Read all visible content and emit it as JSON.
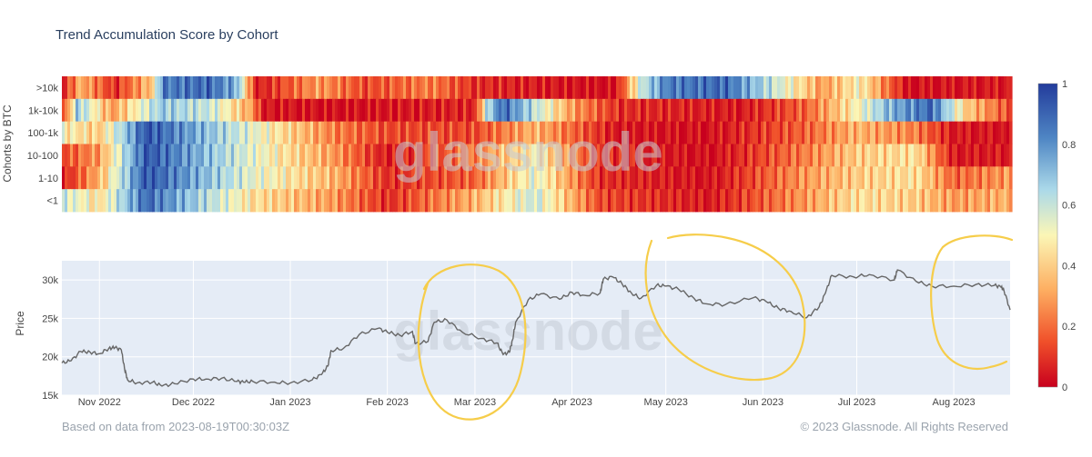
{
  "chart_data": [
    {
      "type": "heatmap",
      "title": "Trend Accumulation Score by Cohort",
      "ylabel": "Cohorts by BTC",
      "rows": [
        ">10k",
        "1k-10k",
        "100-1k",
        "10-100",
        "1-10",
        "<1"
      ],
      "x_start": "2022-10-20",
      "x_end": "2023-08-19",
      "color_scale": {
        "min": 0,
        "max": 1,
        "ticks": [
          0,
          0.2,
          0.4,
          0.6,
          0.8,
          1
        ],
        "colors": [
          "#c8001e",
          "#f0502a",
          "#fdae61",
          "#fbf6b6",
          "#abd9e9",
          "#4f86c4",
          "#233c9c"
        ]
      },
      "segments": [
        [
          [
            "2022-10-20",
            0.05
          ],
          [
            "2022-10-26",
            0.35
          ],
          [
            "2022-11-06",
            0.1
          ],
          [
            "2022-11-18",
            0.4
          ],
          [
            "2022-11-21",
            0.85
          ],
          [
            "2022-12-06",
            0.9
          ],
          [
            "2022-12-15",
            0.75
          ],
          [
            "2022-12-21",
            0.05
          ],
          [
            "2023-01-10",
            0.3
          ],
          [
            "2023-01-25",
            0.15
          ],
          [
            "2023-02-15",
            0.25
          ],
          [
            "2023-03-01",
            0.1
          ],
          [
            "2023-03-25",
            0.05
          ],
          [
            "2023-04-15",
            0.02
          ],
          [
            "2023-04-23",
            0.6
          ],
          [
            "2023-05-01",
            0.85
          ],
          [
            "2023-05-20",
            0.9
          ],
          [
            "2023-06-05",
            0.6
          ],
          [
            "2023-06-20",
            0.3
          ],
          [
            "2023-07-02",
            0.5
          ],
          [
            "2023-07-17",
            0.03
          ],
          [
            "2023-08-19",
            0.05
          ]
        ],
        [
          [
            "2022-10-20",
            0.05
          ],
          [
            "2022-10-25",
            0.7
          ],
          [
            "2022-11-05",
            0.3
          ],
          [
            "2022-11-21",
            0.7
          ],
          [
            "2022-12-07",
            0.6
          ],
          [
            "2022-12-20",
            0.3
          ],
          [
            "2022-12-23",
            0.05
          ],
          [
            "2023-01-15",
            0.03
          ],
          [
            "2023-03-01",
            0.08
          ],
          [
            "2023-03-05",
            0.65
          ],
          [
            "2023-03-10",
            0.9
          ],
          [
            "2023-04-01",
            0.3
          ],
          [
            "2023-04-16",
            0.1
          ],
          [
            "2023-05-25",
            0.05
          ],
          [
            "2023-06-15",
            0.2
          ],
          [
            "2023-07-01",
            0.5
          ],
          [
            "2023-07-12",
            0.75
          ],
          [
            "2023-07-25",
            0.9
          ],
          [
            "2023-08-05",
            0.4
          ],
          [
            "2023-08-19",
            0.15
          ]
        ],
        [
          [
            "2022-10-20",
            0.5
          ],
          [
            "2022-11-01",
            0.4
          ],
          [
            "2022-11-16",
            0.95
          ],
          [
            "2022-12-20",
            0.55
          ],
          [
            "2023-01-15",
            0.25
          ],
          [
            "2023-02-01",
            0.15
          ],
          [
            "2023-03-01",
            0.15
          ],
          [
            "2023-03-20",
            0.35
          ],
          [
            "2023-04-15",
            0.05
          ],
          [
            "2023-05-15",
            0.03
          ],
          [
            "2023-06-15",
            0.2
          ],
          [
            "2023-07-01",
            0.35
          ],
          [
            "2023-07-20",
            0.25
          ],
          [
            "2023-08-01",
            0.05
          ],
          [
            "2023-08-19",
            0.03
          ]
        ],
        [
          [
            "2022-10-20",
            0.15
          ],
          [
            "2022-11-01",
            0.3
          ],
          [
            "2022-11-16",
            0.95
          ],
          [
            "2022-12-20",
            0.55
          ],
          [
            "2023-01-15",
            0.3
          ],
          [
            "2023-02-01",
            0.05
          ],
          [
            "2023-03-01",
            0.25
          ],
          [
            "2023-03-20",
            0.5
          ],
          [
            "2023-04-10",
            0.1
          ],
          [
            "2023-05-15",
            0.02
          ],
          [
            "2023-06-15",
            0.25
          ],
          [
            "2023-07-01",
            0.4
          ],
          [
            "2023-07-20",
            0.45
          ],
          [
            "2023-08-01",
            0.05
          ],
          [
            "2023-08-19",
            0.05
          ]
        ],
        [
          [
            "2022-10-20",
            0.05
          ],
          [
            "2022-11-01",
            0.35
          ],
          [
            "2022-11-16",
            0.95
          ],
          [
            "2022-12-20",
            0.55
          ],
          [
            "2023-01-15",
            0.35
          ],
          [
            "2023-02-01",
            0.1
          ],
          [
            "2023-03-01",
            0.2
          ],
          [
            "2023-03-20",
            0.55
          ],
          [
            "2023-04-10",
            0.1
          ],
          [
            "2023-05-15",
            0.03
          ],
          [
            "2023-06-15",
            0.3
          ],
          [
            "2023-07-01",
            0.4
          ],
          [
            "2023-07-20",
            0.45
          ],
          [
            "2023-08-01",
            0.2
          ],
          [
            "2023-08-19",
            0.3
          ]
        ],
        [
          [
            "2022-10-20",
            0.6
          ],
          [
            "2022-11-01",
            0.45
          ],
          [
            "2022-11-16",
            0.9
          ],
          [
            "2022-12-20",
            0.45
          ],
          [
            "2023-01-15",
            0.3
          ],
          [
            "2023-02-01",
            0.1
          ],
          [
            "2023-03-01",
            0.35
          ],
          [
            "2023-03-20",
            0.6
          ],
          [
            "2023-04-10",
            0.15
          ],
          [
            "2023-05-15",
            0.05
          ],
          [
            "2023-06-15",
            0.3
          ],
          [
            "2023-07-01",
            0.45
          ],
          [
            "2023-07-20",
            0.4
          ],
          [
            "2023-08-01",
            0.3
          ],
          [
            "2023-08-19",
            0.35
          ]
        ]
      ]
    },
    {
      "type": "line",
      "ylabel": "Price",
      "yticks": [
        15000,
        20000,
        25000,
        30000
      ],
      "ytick_labels": [
        "15k",
        "20k",
        "25k",
        "30k"
      ],
      "ylim": [
        15000,
        32500
      ],
      "xticks": [
        {
          "date": "2022-11-01",
          "label": "Nov 2022"
        },
        {
          "date": "2022-12-01",
          "label": "Dec 2022"
        },
        {
          "date": "2023-01-01",
          "label": "Jan 2023"
        },
        {
          "date": "2023-02-01",
          "label": "Feb 2023"
        },
        {
          "date": "2023-03-01",
          "label": "Mar 2023"
        },
        {
          "date": "2023-04-01",
          "label": "Apr 2023"
        },
        {
          "date": "2023-05-01",
          "label": "May 2023"
        },
        {
          "date": "2023-06-01",
          "label": "Jun 2023"
        },
        {
          "date": "2023-07-01",
          "label": "Jul 2023"
        },
        {
          "date": "2023-08-01",
          "label": "Aug 2023"
        }
      ],
      "line_color": "#666666",
      "series": [
        {
          "x": [
            "2022-10-20",
            "2022-10-23",
            "2022-10-26",
            "2022-10-29",
            "2022-11-01",
            "2022-11-04",
            "2022-11-06",
            "2022-11-08",
            "2022-11-09",
            "2022-11-10",
            "2022-11-13",
            "2022-11-18",
            "2022-11-21",
            "2022-11-25",
            "2022-12-01",
            "2022-12-05",
            "2022-12-10",
            "2022-12-15",
            "2022-12-17",
            "2022-12-20",
            "2022-12-27",
            "2023-01-01",
            "2023-01-08",
            "2023-01-11",
            "2023-01-13",
            "2023-01-14",
            "2023-01-18",
            "2023-01-23",
            "2023-01-29",
            "2023-02-01",
            "2023-02-05",
            "2023-02-09",
            "2023-02-10",
            "2023-02-14",
            "2023-02-16",
            "2023-02-20",
            "2023-02-25",
            "2023-03-03",
            "2023-03-08",
            "2023-03-10",
            "2023-03-12",
            "2023-03-13",
            "2023-03-14",
            "2023-03-18",
            "2023-03-22",
            "2023-03-28",
            "2023-04-01",
            "2023-04-05",
            "2023-04-10",
            "2023-04-11",
            "2023-04-14",
            "2023-04-17",
            "2023-04-20",
            "2023-04-23",
            "2023-04-28",
            "2023-05-01",
            "2023-05-05",
            "2023-05-10",
            "2023-05-14",
            "2023-05-20",
            "2023-05-29",
            "2023-06-02",
            "2023-06-06",
            "2023-06-10",
            "2023-06-15",
            "2023-06-19",
            "2023-06-21",
            "2023-06-23",
            "2023-06-30",
            "2023-07-05",
            "2023-07-13",
            "2023-07-14",
            "2023-07-20",
            "2023-07-25",
            "2023-08-01",
            "2023-08-08",
            "2023-08-14",
            "2023-08-16",
            "2023-08-17",
            "2023-08-19"
          ],
          "y": [
            19200,
            19500,
            20700,
            20600,
            20400,
            21100,
            21200,
            20900,
            18500,
            17000,
            16600,
            16700,
            16200,
            16500,
            17100,
            17100,
            17200,
            16800,
            16700,
            16800,
            16700,
            16600,
            17000,
            17700,
            18800,
            20800,
            21100,
            22900,
            23700,
            23200,
            22800,
            23300,
            21700,
            22000,
            24500,
            24800,
            23200,
            22400,
            21800,
            20300,
            20600,
            22200,
            24500,
            27400,
            28200,
            27500,
            28400,
            28000,
            28300,
            30100,
            30400,
            29500,
            28300,
            27600,
            29300,
            29200,
            28800,
            27600,
            26900,
            26800,
            27700,
            27200,
            26300,
            25900,
            25100,
            26500,
            28300,
            30600,
            30400,
            30700,
            30000,
            31300,
            29800,
            29200,
            29200,
            29400,
            29300,
            29100,
            28700,
            26100
          ]
        }
      ]
    }
  ],
  "footer": {
    "left": "Based on data from 2023-08-19T00:30:03Z",
    "right": "© 2023 Glassnode. All Rights Reserved"
  },
  "watermark": "glassnode",
  "annotations": {
    "type": "hand-drawn circles",
    "color": "#f6cd4a",
    "targets": [
      "2023-03-01",
      "2023-06-01",
      "2023-08-08"
    ]
  }
}
